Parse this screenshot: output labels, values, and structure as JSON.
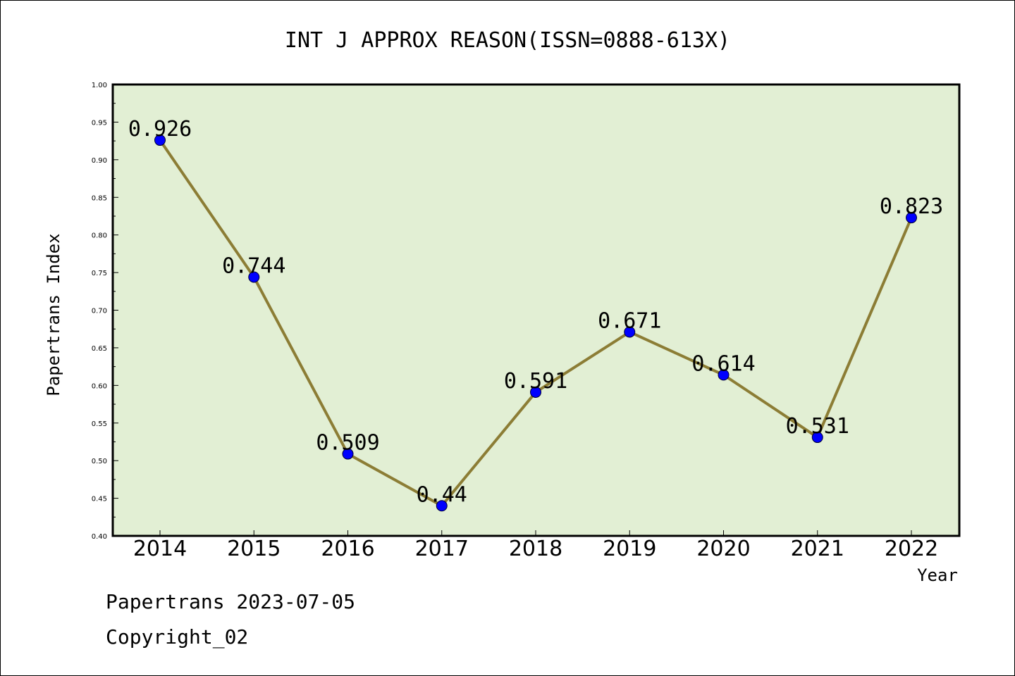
{
  "chart_data": {
    "type": "line",
    "title": "INT J APPROX REASON(ISSN=0888-613X)",
    "xlabel": "Year",
    "ylabel": "Papertrans Index",
    "categories": [
      "2014",
      "2015",
      "2016",
      "2017",
      "2018",
      "2019",
      "2020",
      "2021",
      "2022"
    ],
    "series": [
      {
        "values": [
          0.926,
          0.744,
          0.509,
          0.44,
          0.591,
          0.671,
          0.614,
          0.531,
          0.823
        ],
        "labels": [
          "0.926",
          "0.744",
          "0.509",
          "0.44",
          "0.591",
          "0.671",
          "0.614",
          "0.531",
          "0.823"
        ]
      }
    ],
    "ylim": [
      0.4,
      1.0
    ],
    "yticks": [
      "0.40",
      "0.45",
      "0.50",
      "0.55",
      "0.60",
      "0.65",
      "0.70",
      "0.75",
      "0.80",
      "0.85",
      "0.90",
      "0.95",
      "1.00"
    ],
    "grid": false,
    "colors": {
      "plot_background": "#e2efd4",
      "line": "#8c7d35",
      "marker": "#0000ff"
    }
  },
  "footer": {
    "line1": "Papertrans 2023-07-05",
    "line2": "Copyright_02"
  }
}
